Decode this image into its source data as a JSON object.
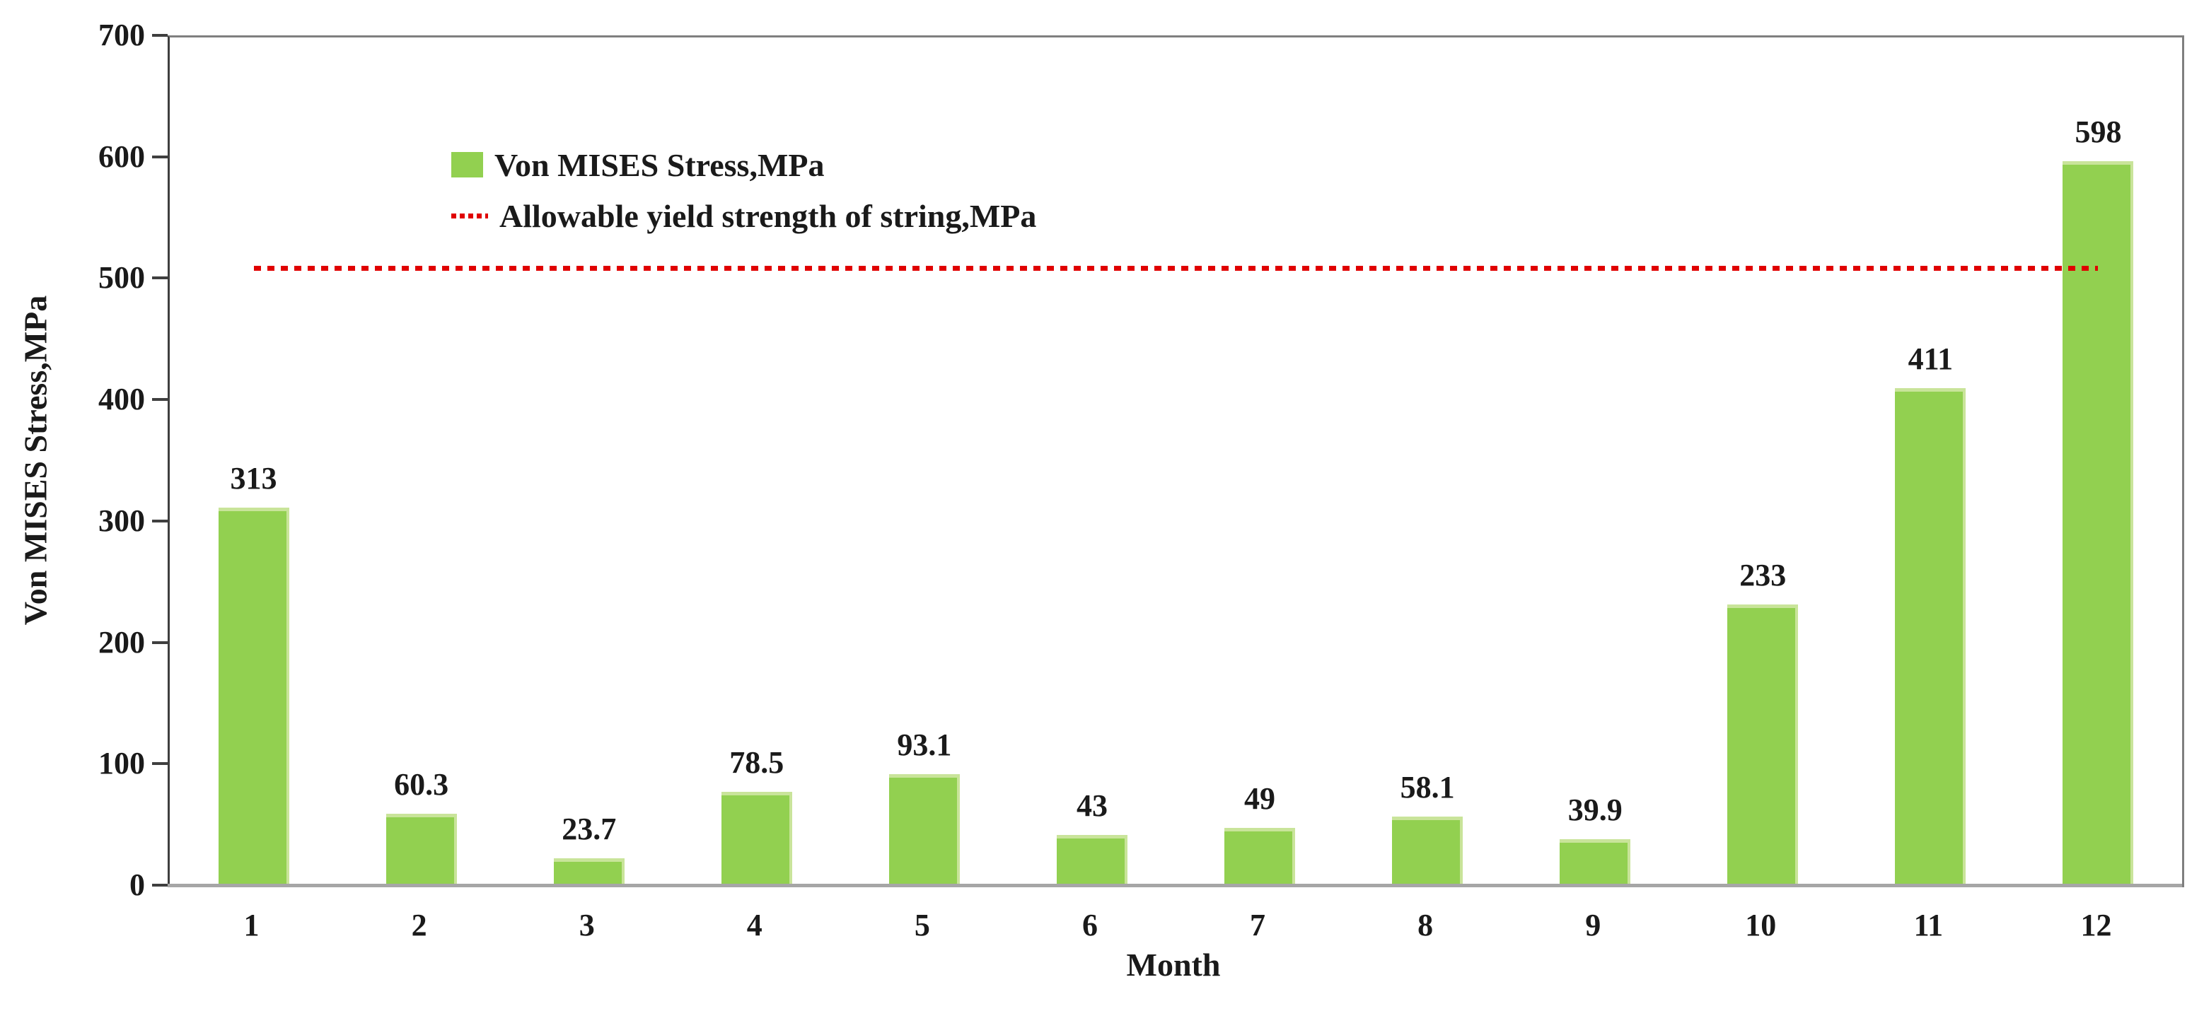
{
  "chart_data": {
    "type": "bar",
    "title": "",
    "xlabel": "Month",
    "ylabel": "Von MISES Stress,MPa",
    "categories": [
      "1",
      "2",
      "3",
      "4",
      "5",
      "6",
      "7",
      "8",
      "9",
      "10",
      "11",
      "12"
    ],
    "series": [
      {
        "name": "Von MISES Stress,MPa",
        "type": "bar",
        "color": "#92d050",
        "values": [
          313,
          60.3,
          23.7,
          78.5,
          93.1,
          43,
          49,
          58.1,
          39.9,
          233,
          411,
          598
        ],
        "value_labels": [
          "313",
          "60.3",
          "23.7",
          "78.5",
          "93.1",
          "43",
          "49",
          "58.1",
          "39.9",
          "233",
          "411",
          "598"
        ]
      },
      {
        "name": "Allowable yield strength of string,MPa",
        "type": "horizontal-line",
        "style": "dotted",
        "color": "#e00000",
        "value": 510
      }
    ],
    "ylim": [
      0,
      700
    ],
    "yticks": [
      0,
      100,
      200,
      300,
      400,
      500,
      600,
      700
    ],
    "grid": false,
    "legend_position": "upper-left-inside"
  },
  "legend": {
    "items": [
      {
        "marker": "green-swatch",
        "label": "Von MISES Stress,MPa"
      },
      {
        "marker": "red-dotted-line",
        "label": "Allowable yield strength of string,MPa"
      }
    ]
  },
  "colors": {
    "bar_fill": "#92d050",
    "bar_edge_highlight": "#c9e49a",
    "threshold_red": "#e00000",
    "frame_gray": "#7f7f7f",
    "x_axis_gray": "#a6a6a6",
    "y_axis_dark": "#3f3f3f",
    "text": "#1a1a1a"
  }
}
